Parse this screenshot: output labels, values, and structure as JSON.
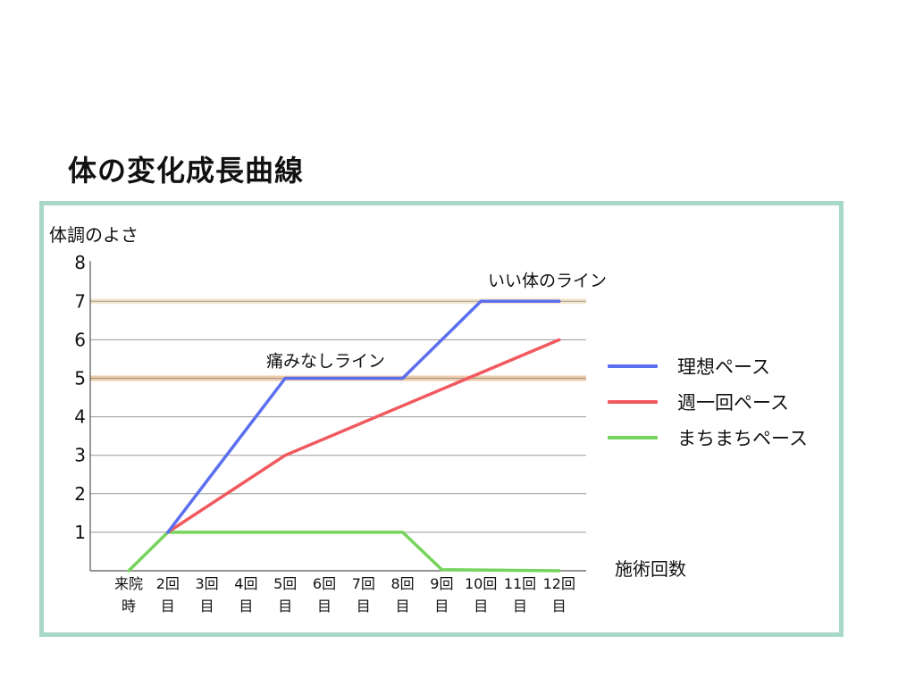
{
  "page": {
    "title": "体の変化成長曲線"
  },
  "chart_data": {
    "type": "line",
    "title": "体の変化成長曲線",
    "ylabel": "体調のよさ",
    "xlabel": "施術回数",
    "ylim": [
      0,
      8
    ],
    "yticks": [
      1,
      2,
      3,
      4,
      5,
      6,
      7,
      8
    ],
    "categories": [
      {
        "line1": "来院",
        "line2": "時"
      },
      {
        "line1": "2回",
        "line2": "目"
      },
      {
        "line1": "3回",
        "line2": "目"
      },
      {
        "line1": "4回",
        "line2": "目"
      },
      {
        "line1": "5回",
        "line2": "目"
      },
      {
        "line1": "6回",
        "line2": "目"
      },
      {
        "line1": "7回",
        "line2": "目"
      },
      {
        "line1": "8回",
        "line2": "目"
      },
      {
        "line1": "9回",
        "line2": "目"
      },
      {
        "line1": "10回",
        "line2": "目"
      },
      {
        "line1": "11回",
        "line2": "目"
      },
      {
        "line1": "12回",
        "line2": "目"
      }
    ],
    "series": [
      {
        "name": "理想ペース",
        "color": "#5b6ff0",
        "points": [
          [
            2,
            1
          ],
          [
            5,
            5
          ],
          [
            8,
            5
          ],
          [
            10,
            7
          ],
          [
            12,
            7
          ]
        ]
      },
      {
        "name": "週一回ペース",
        "color": "#f0595e",
        "points": [
          [
            2,
            1
          ],
          [
            5,
            3
          ],
          [
            12,
            6
          ]
        ]
      },
      {
        "name": "まちまちペース",
        "color": "#74d45c",
        "points": [
          [
            1,
            0
          ],
          [
            2,
            1
          ],
          [
            8,
            1
          ],
          [
            9,
            0.03
          ],
          [
            12,
            0
          ]
        ]
      }
    ],
    "reference_lines": [
      {
        "y": 5,
        "label": "痛みなしライン",
        "color": "#e8b98a"
      },
      {
        "y": 7,
        "label": "いい体のライン",
        "color": "#f3deba"
      }
    ],
    "grid": true,
    "legend_position": "right"
  }
}
